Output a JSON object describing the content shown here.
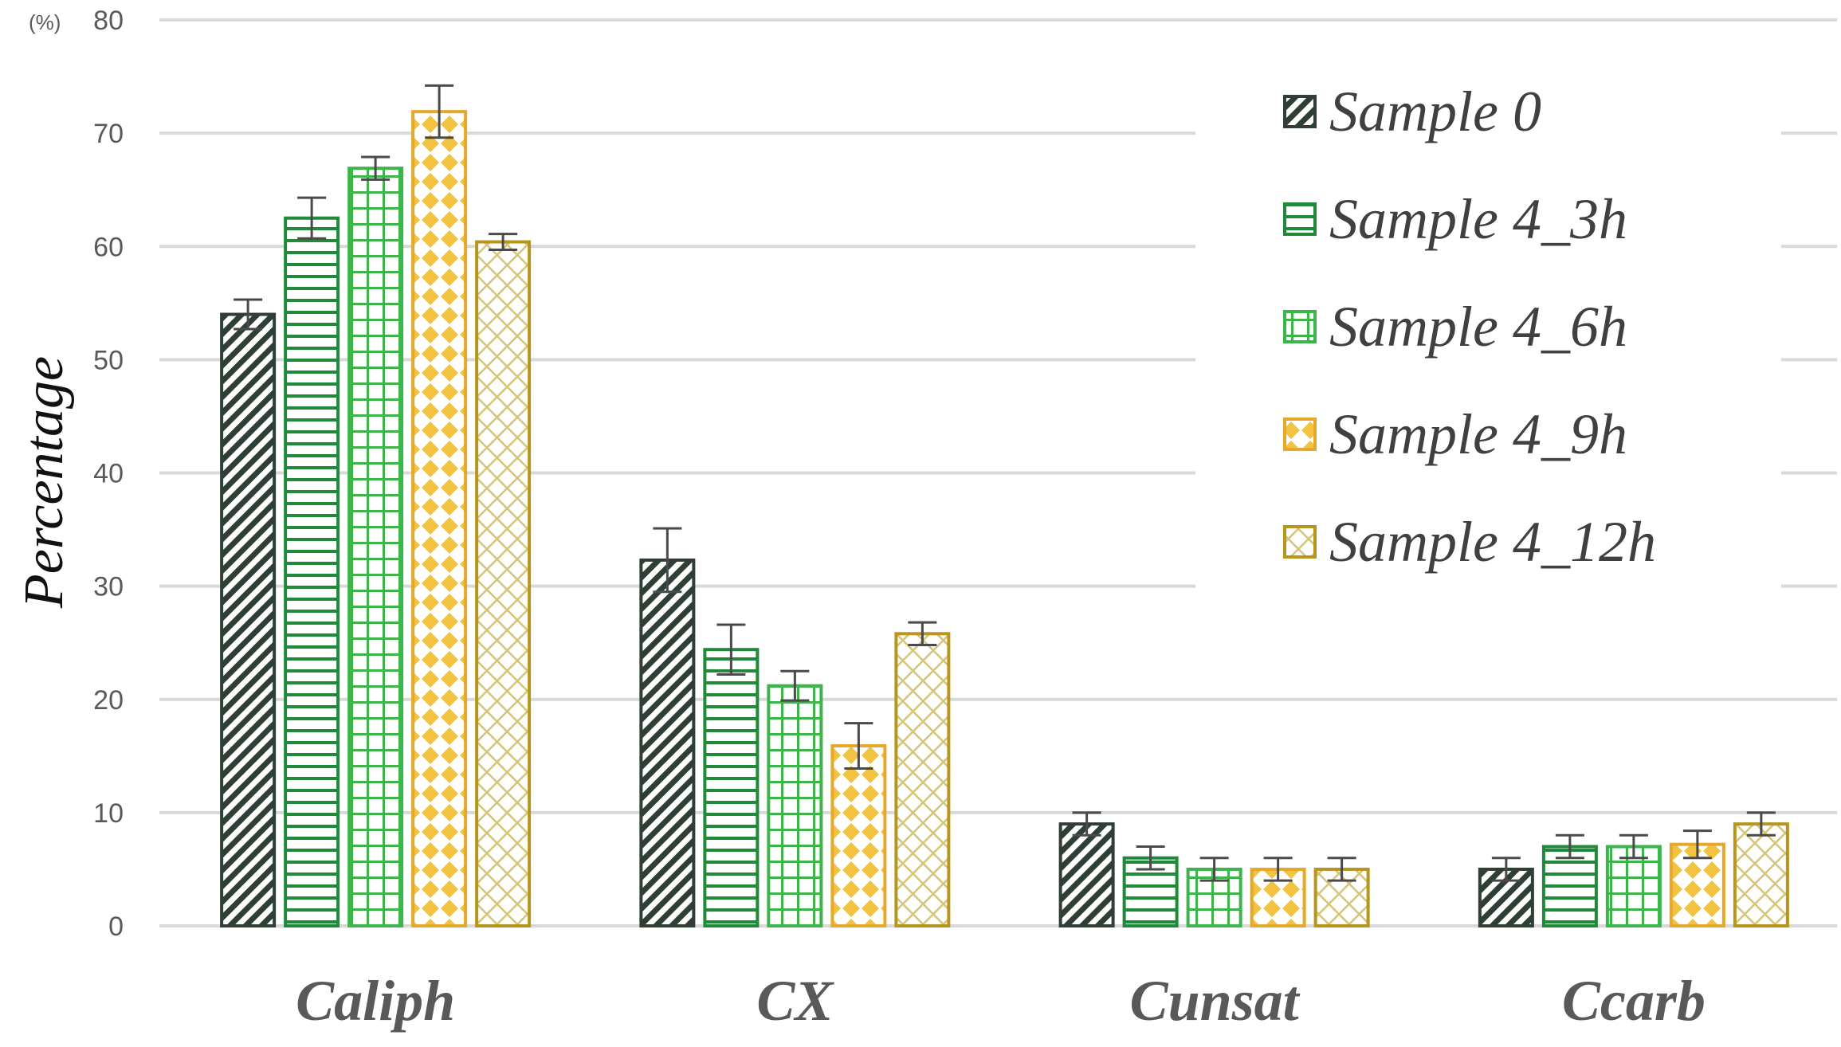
{
  "chart_data": {
    "type": "bar",
    "title": "",
    "xlabel": "",
    "ylabel": "Percentage",
    "yunit": "(%)",
    "ylim": [
      0,
      80
    ],
    "yticks": [
      0,
      10,
      20,
      30,
      40,
      50,
      60,
      70,
      80
    ],
    "grid": true,
    "legend_position": "top-right",
    "categories": [
      "Caliph",
      "CX",
      "Cunsat",
      "Ccarb"
    ],
    "series": [
      {
        "name": "Sample 0",
        "color": "#2f3f36",
        "pattern": "diag",
        "values": [
          54,
          32.3,
          9,
          5
        ],
        "errors": [
          1.3,
          2.8,
          1.0,
          1.0
        ]
      },
      {
        "name": "Sample 4_3h",
        "color": "#1f8a3a",
        "pattern": "hlines",
        "values": [
          62.5,
          24.4,
          6,
          7
        ],
        "errors": [
          1.8,
          2.2,
          1.0,
          1.0
        ]
      },
      {
        "name": "Sample 4_6h",
        "color": "#3cb54a",
        "pattern": "grid",
        "values": [
          66.9,
          21.2,
          5,
          7
        ],
        "errors": [
          1.0,
          1.3,
          1.0,
          1.0
        ]
      },
      {
        "name": "Sample 4_9h",
        "color": "#e6a82a",
        "pattern": "diamonds",
        "values": [
          71.9,
          15.9,
          5,
          7.2
        ],
        "errors": [
          2.3,
          2.0,
          1.0,
          1.2
        ]
      },
      {
        "name": "Sample 4_12h",
        "color": "#b8961e",
        "pattern": "lattice",
        "values": [
          60.4,
          25.8,
          5,
          9
        ],
        "errors": [
          0.7,
          1.0,
          1.0,
          1.0
        ]
      }
    ]
  }
}
